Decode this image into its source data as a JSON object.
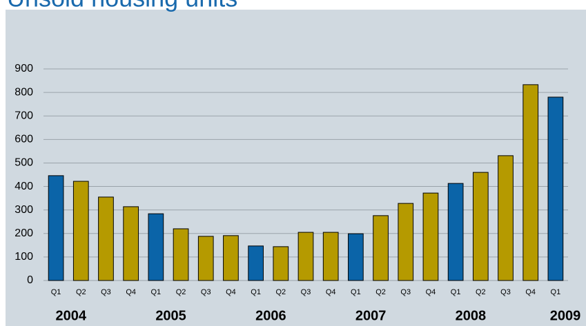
{
  "chart_data": {
    "type": "bar",
    "title": "Unsold housing units",
    "categories": [
      "Q1",
      "Q2",
      "Q3",
      "Q4",
      "Q1",
      "Q2",
      "Q3",
      "Q4",
      "Q1",
      "Q2",
      "Q3",
      "Q4",
      "Q1",
      "Q2",
      "Q3",
      "Q4",
      "Q1",
      "Q2",
      "Q3",
      "Q4",
      "Q1"
    ],
    "years": [
      "2004",
      null,
      null,
      null,
      "2005",
      null,
      null,
      null,
      "2006",
      null,
      null,
      null,
      "2007",
      null,
      null,
      null,
      "2008",
      null,
      null,
      null,
      "2009"
    ],
    "values": [
      446,
      422,
      355,
      314,
      284,
      220,
      188,
      191,
      147,
      144,
      205,
      205,
      199,
      276,
      328,
      372,
      413,
      460,
      531,
      833,
      780
    ],
    "colors": [
      "#0b64a8",
      "#b59a00",
      "#b59a00",
      "#b59a00",
      "#0b64a8",
      "#b59a00",
      "#b59a00",
      "#b59a00",
      "#0b64a8",
      "#b59a00",
      "#b59a00",
      "#b59a00",
      "#0b64a8",
      "#b59a00",
      "#b59a00",
      "#b59a00",
      "#0b64a8",
      "#b59a00",
      "#b59a00",
      "#b59a00",
      "#0b64a8"
    ],
    "ylim": [
      0,
      900
    ],
    "yticks": [
      0,
      100,
      200,
      300,
      400,
      500,
      600,
      700,
      800,
      900
    ],
    "grid": true
  }
}
